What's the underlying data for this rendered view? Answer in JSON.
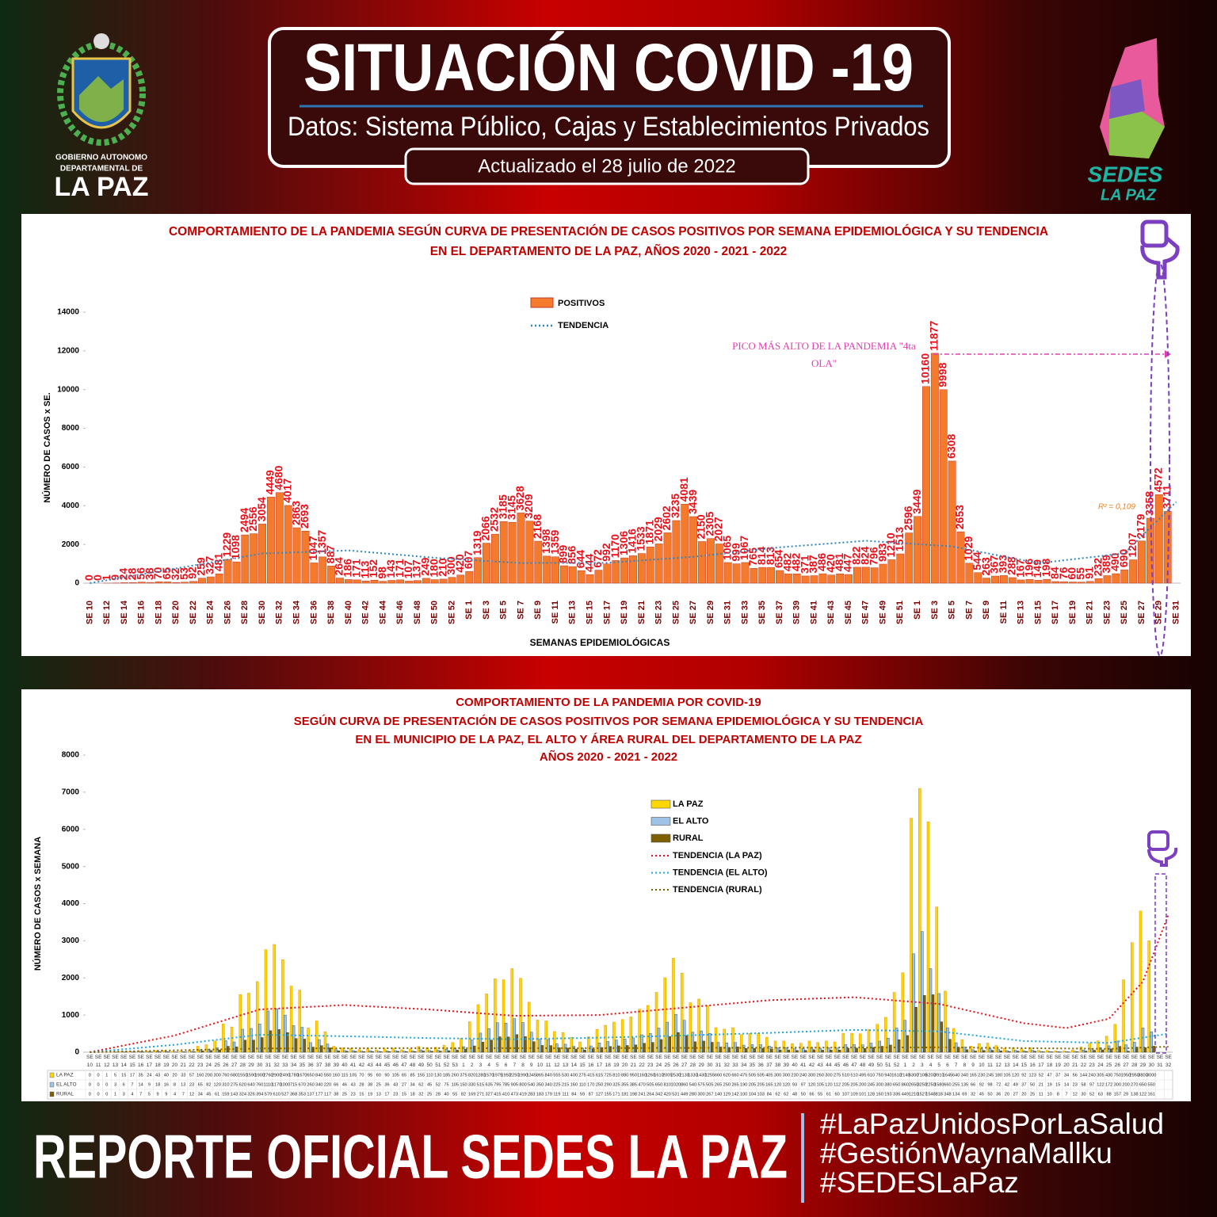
{
  "header": {
    "title": "SITUACIÓN COVID -19",
    "subtitle": "Datos: Sistema Público, Cajas y Establecimientos Privados",
    "updated": "Actualizado el  28  julio  de 2022",
    "logo_left": [
      "GOBIERNO AUTONOMO",
      "DEPARTAMENTAL DE",
      "LA PAZ"
    ],
    "logo_right": [
      "SEDES",
      "LA PAZ"
    ]
  },
  "chart_data": [
    {
      "type": "bar",
      "title": [
        "COMPORTAMIENTO DE LA PANDEMIA SEGÚN CURVA DE PRESENTACIÓN DE CASOS POSITIVOS POR SEMANA EPIDEMIOLÓGICA Y SU TENDENCIA",
        "EN EL DEPARTAMENTO DE LA PAZ, AÑOS 2020 - 2021 - 2022"
      ],
      "y_label": "NÚMERO DE CASOS x SE.",
      "x_label": "SEMANAS EPIDEMIOLÓGICAS",
      "annotation": [
        "PICO MÁS ALTO DE LA PANDEMIA \"4ta",
        "OLA\""
      ],
      "r2_label": "R² = 0,109",
      "ylim": [
        0,
        14000
      ],
      "yticks": [
        0,
        2000,
        4000,
        6000,
        8000,
        10000,
        12000,
        14000
      ],
      "categories": [
        "SE 10",
        null,
        "SE 12",
        null,
        "SE 14",
        null,
        "SE 16",
        null,
        "SE 18",
        null,
        "SE 20",
        null,
        "SE 22",
        null,
        "SE 24",
        null,
        "SE 26",
        null,
        "SE 28",
        null,
        "SE 30",
        null,
        "SE 32",
        null,
        "SE 34",
        null,
        "SE 36",
        null,
        "SE 38",
        null,
        "SE 40",
        null,
        "SE 42",
        null,
        "SE 44",
        null,
        "SE 46",
        null,
        "SE 48",
        null,
        "SE 50",
        null,
        "SE 52",
        null,
        "SE 1",
        null,
        "SE 3",
        null,
        "SE 5",
        null,
        "SE 7",
        null,
        "SE 9",
        null,
        "SE 11",
        null,
        "SE 13",
        null,
        "SE 15",
        null,
        "SE 17",
        null,
        "SE 19",
        null,
        "SE 21",
        null,
        "SE 23",
        null,
        "SE 25",
        null,
        "SE 27",
        null,
        "SE 29",
        null,
        "SE 31",
        null,
        "SE 33",
        null,
        "SE 35",
        null,
        "SE 37",
        null,
        "SE 39",
        null,
        "SE 41",
        null,
        "SE 43",
        null,
        "SE 45",
        null,
        "SE 47",
        null,
        "SE 49",
        null,
        "SE 51",
        null,
        "SE 1",
        null,
        "SE 3",
        null,
        "SE 5",
        null,
        "SE 7",
        null,
        "SE 9",
        null,
        "SE 11",
        null,
        "SE 13",
        null,
        "SE 15",
        null,
        "SE 17",
        null,
        "SE 19",
        null,
        "SE 21",
        null,
        "SE 23",
        null,
        "SE 25",
        null,
        "SE 27",
        null,
        "SE 29",
        null,
        "SE 31"
      ],
      "series": [
        {
          "name": "POSITIVOS",
          "color": "#f47a2c",
          "values": [
            0,
            0,
            1,
            9,
            24,
            28,
            56,
            38,
            70,
            65,
            32,
            53,
            92,
            259,
            327,
            481,
            1229,
            1098,
            2494,
            2556,
            3054,
            4449,
            4680,
            4017,
            2863,
            2693,
            1047,
            1357,
            887,
            264,
            186,
            171,
            113,
            152,
            98,
            143,
            171,
            107,
            137,
            249,
            180,
            210,
            300,
            420,
            607,
            1319,
            2066,
            2532,
            3185,
            3145,
            3628,
            3209,
            2168,
            1398,
            1359,
            899,
            856,
            644,
            444,
            672,
            992,
            1170,
            1306,
            1416,
            1533,
            1871,
            2029,
            2602,
            3235,
            4081,
            3439,
            2150,
            2305,
            2027,
            1065,
            999,
            1067,
            765,
            814,
            813,
            654,
            482,
            482,
            371,
            387,
            486,
            420,
            481,
            447,
            822,
            824,
            796,
            983,
            1210,
            1513,
            2596,
            3449,
            10160,
            11877,
            9998,
            6308,
            2653,
            1029,
            544,
            263,
            367,
            393,
            288,
            167,
            196,
            149,
            198,
            84,
            76,
            60,
            55,
            91,
            232,
            389,
            490,
            690,
            1207,
            2179,
            3358,
            4572,
            3711,
            null
          ]
        }
      ],
      "trends": [
        {
          "name": "TENDENCIA",
          "color": "#2e86c1",
          "x": [
            0,
            10,
            20,
            30,
            40,
            50,
            60,
            70,
            80,
            90,
            100,
            110,
            120,
            126
          ],
          "values": [
            0,
            760,
            1530,
            1690,
            1310,
            1040,
            1050,
            1360,
            1850,
            2190,
            1900,
            1030,
            1540,
            4200
          ]
        }
      ]
    },
    {
      "type": "bar",
      "title": [
        "COMPORTAMIENTO DE LA PANDEMIA POR COVID-19",
        "SEGÚN CURVA DE PRESENTACIÓN DE CASOS POSITIVOS POR SEMANA EPIDEMIOLÓGICA Y SU TENDENCIA",
        "EN EL  MUNICIPIO DE LA PAZ, EL ALTO Y ÁREA RURAL DEL DEPARTAMENTO DE LA PAZ",
        "AÑOS 2020 - 2021 - 2022"
      ],
      "y_label": "NÚMERO DE CASOS x SEMANA",
      "ylim": [
        0,
        8000
      ],
      "yticks": [
        0,
        1000,
        2000,
        3000,
        4000,
        5000,
        6000,
        7000,
        8000
      ],
      "categories": [
        "SE 10",
        "SE 11",
        "SE 12",
        "SE 13",
        "SE 14",
        "SE 15",
        "SE 16",
        "SE 17",
        "SE 18",
        "SE 19",
        "SE 20",
        "SE 21",
        "SE 22",
        "SE 23",
        "SE 24",
        "SE 25",
        "SE 26",
        "SE 27",
        "SE 28",
        "SE 29",
        "SE 30",
        "SE 31",
        "SE 32",
        "SE 33",
        "SE 34",
        "SE 35",
        "SE 36",
        "SE 37",
        "SE 38",
        "SE 39",
        "SE 40",
        "SE 41",
        "SE 42",
        "SE 43",
        "SE 44",
        "SE 45",
        "SE 46",
        "SE 47",
        "SE 48",
        "SE 49",
        "SE 50",
        "SE 51",
        "SE 52",
        "SE 53",
        "SE 1",
        "SE 2",
        "SE 3",
        "SE 4",
        "SE 5",
        "SE 6",
        "SE 7",
        "SE 8",
        "SE 9",
        "SE 10",
        "SE 11",
        "SE 12",
        "SE 13",
        "SE 14",
        "SE 15",
        "SE 16",
        "SE 17",
        "SE 18",
        "SE 19",
        "SE 20",
        "SE 21",
        "SE 22",
        "SE 23",
        "SE 24",
        "SE 25",
        "SE 26",
        "SE 27",
        "SE 28",
        "SE 29",
        "SE 30",
        "SE 31",
        "SE 32",
        "SE 33",
        "SE 34",
        "SE 35",
        "SE 36",
        "SE 37",
        "SE 38",
        "SE 39",
        "SE 40",
        "SE 41",
        "SE 42",
        "SE 43",
        "SE 44",
        "SE 45",
        "SE 46",
        "SE 47",
        "SE 48",
        "SE 49",
        "SE 50",
        "SE 51",
        "SE 52",
        "SE 1",
        "SE 2",
        "SE 3",
        "SE 4",
        "SE 5",
        "SE 6",
        "SE 7",
        "SE 8",
        "SE 9",
        "SE 10",
        "SE 11",
        "SE 12",
        "SE 13",
        "SE 14",
        "SE 15",
        "SE 16",
        "SE 17",
        "SE 18",
        "SE 19",
        "SE 20",
        "SE 21",
        "SE 22",
        "SE 23",
        "SE 24",
        "SE 25",
        "SE 26",
        "SE 27",
        "SE 28",
        "SE 29",
        "SE 30",
        "SE 31",
        "SE 32"
      ],
      "series": [
        {
          "name": "LA PAZ",
          "color": "#ffd700",
          "values": [
            0,
            0,
            1,
            5,
            15,
            17,
            35,
            24,
            43,
            40,
            20,
            33,
            57,
            160,
            200,
            300,
            760,
            680,
            1550,
            1590,
            1900,
            2760,
            2900,
            2490,
            1780,
            1670,
            650,
            840,
            550,
            160,
            115,
            105,
            70,
            95,
            60,
            90,
            105,
            65,
            85,
            155,
            110,
            130,
            185,
            260,
            375,
            820,
            1280,
            1570,
            1975,
            1950,
            2250,
            1990,
            1345,
            865,
            840,
            555,
            530,
            400,
            275,
            415,
            615,
            725,
            810,
            880,
            950,
            1160,
            1260,
            1610,
            2005,
            2530,
            2130,
            1330,
            1430,
            1255,
            660,
            620,
            660,
            475,
            505,
            505,
            405,
            300,
            300,
            230,
            240,
            300,
            260,
            300,
            275,
            510,
            510,
            495,
            610,
            750,
            940,
            1610,
            2140,
            6300,
            7100,
            6200,
            3910,
            1645,
            640,
            340,
            165,
            230,
            245,
            180,
            105,
            120,
            92,
            123,
            52,
            47,
            37,
            34,
            56,
            144,
            240,
            305,
            430,
            750,
            1950,
            2950,
            3800,
            3000,
            null,
            null
          ]
        },
        {
          "name": "EL ALTO",
          "color": "#9dc3e6",
          "values": [
            0,
            0,
            0,
            3,
            6,
            7,
            14,
            9,
            18,
            16,
            8,
            13,
            23,
            65,
            82,
            120,
            310,
            275,
            620,
            640,
            760,
            1110,
            1170,
            1000,
            715,
            670,
            260,
            340,
            220,
            66,
            46,
            43,
            28,
            38,
            25,
            36,
            43,
            27,
            34,
            62,
            45,
            52,
            75,
            105,
            150,
            330,
            515,
            635,
            795,
            785,
            905,
            800,
            540,
            350,
            340,
            225,
            215,
            160,
            110,
            170,
            250,
            290,
            325,
            355,
            385,
            470,
            505,
            650,
            810,
            1020,
            860,
            540,
            575,
            505,
            265,
            250,
            265,
            190,
            205,
            205,
            165,
            120,
            120,
            93,
            97,
            120,
            105,
            120,
            112,
            205,
            205,
            200,
            245,
            300,
            380,
            650,
            860,
            2650,
            3250,
            2250,
            1580,
            660,
            255,
            135,
            66,
            92,
            98,
            72,
            42,
            49,
            37,
            50,
            21,
            19,
            15,
            14,
            23,
            58,
            97,
            122,
            172,
            300,
            200,
            270,
            650,
            550,
            null,
            null
          ]
        },
        {
          "name": "RURAL",
          "color": "#7f6000",
          "values": [
            0,
            0,
            0,
            1,
            3,
            4,
            7,
            5,
            9,
            9,
            4,
            7,
            12,
            34,
            45,
            61,
            159,
            143,
            324,
            326,
            394,
            579,
            610,
            527,
            368,
            353,
            137,
            177,
            117,
            38,
            25,
            23,
            15,
            19,
            13,
            17,
            23,
            15,
            18,
            32,
            25,
            28,
            40,
            55,
            82,
            169,
            271,
            327,
            415,
            410,
            473,
            419,
            283,
            183,
            179,
            119,
            111,
            84,
            59,
            87,
            127,
            155,
            171,
            181,
            198,
            241,
            264,
            342,
            420,
            531,
            449,
            280,
            300,
            267,
            140,
            129,
            142,
            100,
            104,
            103,
            84,
            62,
            62,
            48,
            50,
            66,
            55,
            61,
            60,
            107,
            109,
            101,
            128,
            160,
            193,
            336,
            449,
            1210,
            1527,
            1548,
            818,
            348,
            134,
            69,
            32,
            45,
            50,
            36,
            20,
            27,
            20,
            25,
            11,
            10,
            8,
            7,
            12,
            30,
            52,
            63,
            88,
            157,
            29,
            138,
            122,
            161,
            null,
            null
          ]
        }
      ],
      "trends": [
        {
          "name": "TENDENCIA (LA PAZ)",
          "color": "#e8101a",
          "x": [
            0,
            10,
            20,
            30,
            40,
            50,
            60,
            70,
            80,
            90,
            100,
            110,
            115,
            120,
            124,
            127
          ],
          "values": [
            0,
            450,
            1150,
            1270,
            1150,
            980,
            1000,
            1200,
            1400,
            1480,
            1300,
            780,
            650,
            900,
            1900,
            3700
          ]
        },
        {
          "name": "TENDENCIA (EL ALTO)",
          "color": "#1fa5e0",
          "x": [
            0,
            10,
            20,
            30,
            40,
            50,
            60,
            70,
            80,
            90,
            100,
            110,
            120,
            127
          ],
          "values": [
            0,
            200,
            470,
            430,
            380,
            350,
            390,
            450,
            520,
            600,
            560,
            300,
            250,
            500
          ]
        },
        {
          "name": "TENDENCIA (RURAL)",
          "color": "#7f6000",
          "x": [
            0,
            20,
            40,
            60,
            80,
            100,
            120,
            127
          ],
          "values": [
            0,
            100,
            110,
            110,
            120,
            130,
            90,
            150
          ]
        }
      ]
    }
  ],
  "footer": {
    "report": "REPORTE OFICIAL SEDES LA PAZ",
    "hashtags": [
      "#LaPazUnidosPorLaSalud",
      "#GestiónWaynaMallku",
      "#SEDESLaPaz"
    ]
  }
}
